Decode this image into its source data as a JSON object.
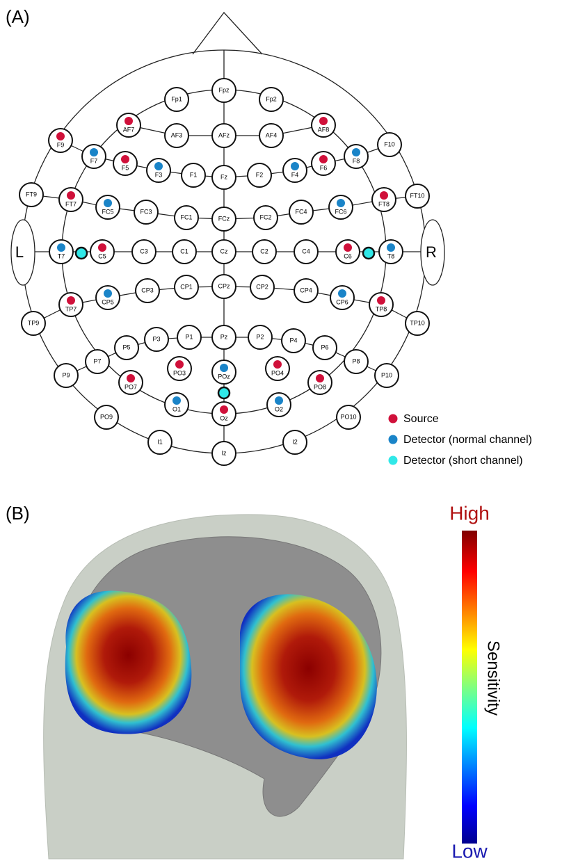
{
  "panel_a": {
    "label": "(A)",
    "left_ear": "L",
    "right_ear": "R",
    "electrodes": [
      "Fp1",
      "Fpz",
      "Fp2",
      "AF7",
      "AF3",
      "AFz",
      "AF4",
      "AF8",
      "F9",
      "F7",
      "F5",
      "F3",
      "F1",
      "Fz",
      "F2",
      "F4",
      "F6",
      "F8",
      "F10",
      "FT9",
      "FT7",
      "FC5",
      "FC3",
      "FC1",
      "FCz",
      "FC2",
      "FC4",
      "FC6",
      "FT8",
      "FT10",
      "T7",
      "C5",
      "C3",
      "C1",
      "Cz",
      "C2",
      "C4",
      "C6",
      "T8",
      "TP9",
      "TP7",
      "CP5",
      "CP3",
      "CP1",
      "CPz",
      "CP2",
      "CP4",
      "CP6",
      "TP8",
      "TP10",
      "P9",
      "P7",
      "P5",
      "P3",
      "P1",
      "Pz",
      "P2",
      "P4",
      "P6",
      "P8",
      "P10",
      "PO9",
      "PO7",
      "PO3",
      "POz",
      "PO4",
      "PO8",
      "PO10",
      "O1",
      "Oz",
      "O2",
      "I1",
      "Iz",
      "I2"
    ],
    "legend": [
      {
        "label": "Source",
        "color": "#d0103a"
      },
      {
        "label": "Detector (normal channel)",
        "color": "#1a84c8"
      },
      {
        "label": "Detector (short channel)",
        "color": "#30e8e8"
      }
    ]
  },
  "panel_b": {
    "label": "(B)",
    "colorbar": {
      "high": "High",
      "low": "Low",
      "title": "Sensitivity"
    }
  }
}
